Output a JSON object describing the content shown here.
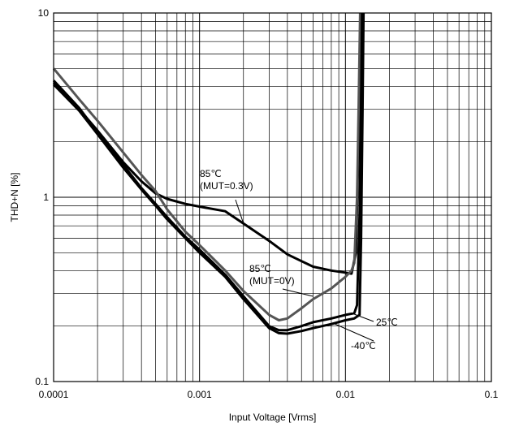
{
  "chart_data": {
    "type": "line",
    "title": "",
    "xlabel": "Input Voltage [Vrms]",
    "ylabel": "THD+N [%]",
    "xscale": "log",
    "yscale": "log",
    "xlim": [
      0.0001,
      0.1
    ],
    "ylim": [
      0.1,
      10
    ],
    "grid": true,
    "x_tick_labels": [
      "0.0001",
      "0.001",
      "0.01",
      "0.1"
    ],
    "y_tick_labels": [
      "0.1",
      "1",
      "10"
    ],
    "series": [
      {
        "name": "85℃ (MUT=0.3V)",
        "color": "#000000",
        "points": [
          [
            0.0001,
            4.2
          ],
          [
            0.00015,
            3.0
          ],
          [
            0.0002,
            2.3
          ],
          [
            0.0003,
            1.55
          ],
          [
            0.0004,
            1.22
          ],
          [
            0.0005,
            1.05
          ],
          [
            0.0006,
            0.98
          ],
          [
            0.0008,
            0.92
          ],
          [
            0.001,
            0.89
          ],
          [
            0.0015,
            0.84
          ],
          [
            0.002,
            0.72
          ],
          [
            0.003,
            0.58
          ],
          [
            0.004,
            0.49
          ],
          [
            0.005,
            0.45
          ],
          [
            0.006,
            0.42
          ],
          [
            0.008,
            0.4
          ],
          [
            0.01,
            0.39
          ],
          [
            0.011,
            0.385
          ],
          [
            0.0118,
            0.5
          ],
          [
            0.0123,
            2.0
          ],
          [
            0.0127,
            10
          ]
        ]
      },
      {
        "name": "85℃ (MUT=0V)",
        "color": "#555555",
        "points": [
          [
            0.0001,
            5.0
          ],
          [
            0.00015,
            3.4
          ],
          [
            0.0002,
            2.6
          ],
          [
            0.0003,
            1.75
          ],
          [
            0.0004,
            1.32
          ],
          [
            0.0005,
            1.08
          ],
          [
            0.0006,
            0.86
          ],
          [
            0.0008,
            0.65
          ],
          [
            0.001,
            0.55
          ],
          [
            0.0015,
            0.4
          ],
          [
            0.002,
            0.31
          ],
          [
            0.003,
            0.23
          ],
          [
            0.0035,
            0.215
          ],
          [
            0.004,
            0.22
          ],
          [
            0.005,
            0.25
          ],
          [
            0.006,
            0.28
          ],
          [
            0.008,
            0.32
          ],
          [
            0.01,
            0.37
          ],
          [
            0.011,
            0.4
          ],
          [
            0.0115,
            0.44
          ],
          [
            0.012,
            1.0
          ],
          [
            0.0123,
            3.0
          ],
          [
            0.0126,
            10
          ]
        ]
      },
      {
        "name": "25℃",
        "color": "#000000",
        "points": [
          [
            0.0001,
            4.3
          ],
          [
            0.00015,
            3.05
          ],
          [
            0.0002,
            2.25
          ],
          [
            0.0003,
            1.5
          ],
          [
            0.0004,
            1.12
          ],
          [
            0.0005,
            0.92
          ],
          [
            0.0006,
            0.78
          ],
          [
            0.0008,
            0.61
          ],
          [
            0.001,
            0.52
          ],
          [
            0.0015,
            0.38
          ],
          [
            0.002,
            0.29
          ],
          [
            0.003,
            0.2
          ],
          [
            0.0035,
            0.19
          ],
          [
            0.004,
            0.19
          ],
          [
            0.005,
            0.2
          ],
          [
            0.006,
            0.21
          ],
          [
            0.008,
            0.22
          ],
          [
            0.01,
            0.23
          ],
          [
            0.0115,
            0.235
          ],
          [
            0.012,
            0.26
          ],
          [
            0.0125,
            0.8
          ],
          [
            0.0128,
            3.0
          ],
          [
            0.013,
            10
          ]
        ]
      },
      {
        "name": "-40℃",
        "color": "#000000",
        "points": [
          [
            0.0001,
            4.1
          ],
          [
            0.00015,
            2.95
          ],
          [
            0.0002,
            2.2
          ],
          [
            0.0003,
            1.45
          ],
          [
            0.0004,
            1.1
          ],
          [
            0.0005,
            0.9
          ],
          [
            0.0006,
            0.76
          ],
          [
            0.0008,
            0.6
          ],
          [
            0.001,
            0.5
          ],
          [
            0.0015,
            0.37
          ],
          [
            0.002,
            0.28
          ],
          [
            0.003,
            0.195
          ],
          [
            0.0035,
            0.183
          ],
          [
            0.004,
            0.182
          ],
          [
            0.005,
            0.188
          ],
          [
            0.006,
            0.195
          ],
          [
            0.008,
            0.205
          ],
          [
            0.01,
            0.215
          ],
          [
            0.0115,
            0.22
          ],
          [
            0.0125,
            0.23
          ],
          [
            0.0128,
            0.6
          ],
          [
            0.0131,
            3.0
          ],
          [
            0.0133,
            10
          ]
        ]
      }
    ],
    "annotations": [
      {
        "text": "85℃",
        "line2": "(MUT=0.3V)",
        "series": 0
      },
      {
        "text": "85℃",
        "line2": "(MUT=0V)",
        "series": 1
      },
      {
        "text": "25℃",
        "series": 2
      },
      {
        "text": "-40℃",
        "series": 3
      }
    ]
  }
}
